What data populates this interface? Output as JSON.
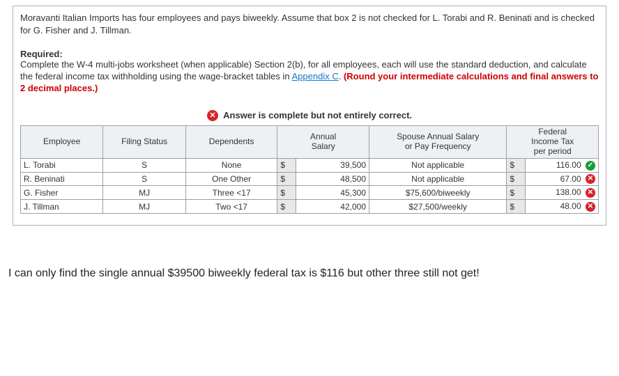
{
  "intro": "Moravanti Italian Imports has four employees and pays biweekly. Assume that box 2 is not checked for L. Torabi and R. Beninati and is checked for G. Fisher and J. Tillman.",
  "required_label": "Required:",
  "required_text_pre": "Complete the W-4 multi-jobs worksheet (when applicable) Section 2(b), for all employees, each will use the standard deduction, and calculate the federal income tax withholding using the wage-bracket tables in ",
  "appendix_link": "Appendix C",
  "required_text_post": ". ",
  "rounding_note": "(Round your intermediate calculations and final answers to 2 decimal places.)",
  "status_text": "Answer is complete but not entirely correct.",
  "headers": {
    "employee": "Employee",
    "filing": "Filing Status",
    "dependents": "Dependents",
    "annual_salary": "Annual\nSalary",
    "spouse": "Spouse Annual Salary\nor Pay Frequency",
    "federal": "Federal\nIncome Tax\nper period"
  },
  "currency": "$",
  "rows": [
    {
      "employee": "L. Torabi",
      "filing": "S",
      "dependents": "None",
      "salary": "39,500",
      "spouse": "Not applicable",
      "tax": "116.00",
      "mark": "ok"
    },
    {
      "employee": "R. Beninati",
      "filing": "S",
      "dependents": "One Other",
      "salary": "48,500",
      "spouse": "Not applicable",
      "tax": "67.00",
      "mark": "bad"
    },
    {
      "employee": "G. Fisher",
      "filing": "MJ",
      "dependents": "Three <17",
      "salary": "45,300",
      "spouse": "$75,600/biweekly",
      "tax": "138.00",
      "mark": "bad"
    },
    {
      "employee": "J. Tillman",
      "filing": "MJ",
      "dependents": "Two <17",
      "salary": "42,000",
      "spouse": "$27,500/weekly",
      "tax": "48.00",
      "mark": "bad"
    }
  ],
  "footer_note": "I can only find the single annual $39500 biweekly federal tax is $116 but other three still not get!",
  "colors": {
    "border": "#9aa0a6",
    "header_bg": "#eef1f4",
    "currency_bg": "#e8e8e8",
    "link": "#1177cc",
    "red": "#cc0000",
    "ok": "#1a9e3a",
    "bad": "#d8222a"
  }
}
